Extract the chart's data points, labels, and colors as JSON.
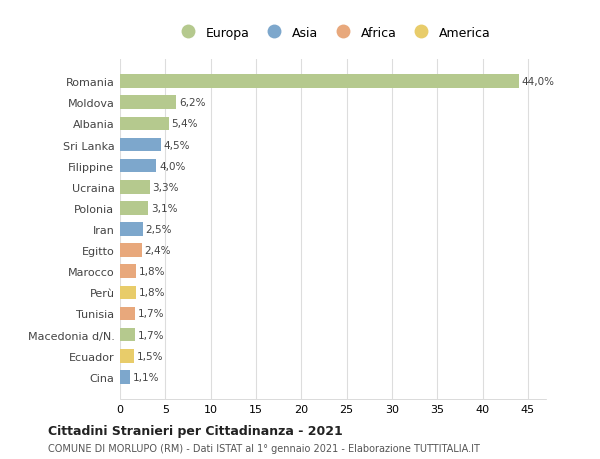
{
  "countries": [
    "Romania",
    "Moldova",
    "Albania",
    "Sri Lanka",
    "Filippine",
    "Ucraina",
    "Polonia",
    "Iran",
    "Egitto",
    "Marocco",
    "Perù",
    "Tunisia",
    "Macedonia d/N.",
    "Ecuador",
    "Cina"
  ],
  "values": [
    44.0,
    6.2,
    5.4,
    4.5,
    4.0,
    3.3,
    3.1,
    2.5,
    2.4,
    1.8,
    1.8,
    1.7,
    1.7,
    1.5,
    1.1
  ],
  "labels": [
    "44,0%",
    "6,2%",
    "5,4%",
    "4,5%",
    "4,0%",
    "3,3%",
    "3,1%",
    "2,5%",
    "2,4%",
    "1,8%",
    "1,8%",
    "1,7%",
    "1,7%",
    "1,5%",
    "1,1%"
  ],
  "continents": [
    "Europa",
    "Europa",
    "Europa",
    "Asia",
    "Asia",
    "Europa",
    "Europa",
    "Asia",
    "Africa",
    "Africa",
    "America",
    "Africa",
    "Europa",
    "America",
    "Asia"
  ],
  "continent_colors": {
    "Europa": "#b5c98e",
    "Asia": "#7da7cc",
    "Africa": "#e8a87c",
    "America": "#e8cc6a"
  },
  "legend_items": [
    "Europa",
    "Asia",
    "Africa",
    "America"
  ],
  "title": "Cittadini Stranieri per Cittadinanza - 2021",
  "subtitle": "COMUNE DI MORLUPO (RM) - Dati ISTAT al 1° gennaio 2021 - Elaborazione TUTTITALIA.IT",
  "xlim": [
    0,
    47
  ],
  "xticks": [
    0,
    5,
    10,
    15,
    20,
    25,
    30,
    35,
    40,
    45
  ],
  "background_color": "#ffffff",
  "grid_color": "#dddddd"
}
